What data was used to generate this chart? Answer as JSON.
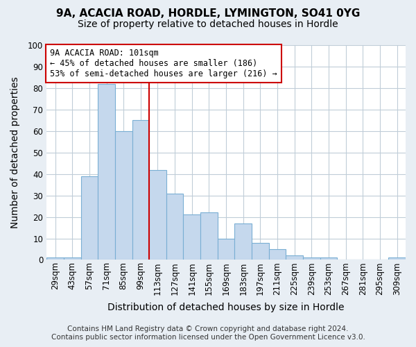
{
  "title": "9A, ACACIA ROAD, HORDLE, LYMINGTON, SO41 0YG",
  "subtitle": "Size of property relative to detached houses in Hordle",
  "xlabel": "Distribution of detached houses by size in Hordle",
  "ylabel": "Number of detached properties",
  "footer_line1": "Contains HM Land Registry data © Crown copyright and database right 2024.",
  "footer_line2": "Contains public sector information licensed under the Open Government Licence v3.0.",
  "bar_labels": [
    "29sqm",
    "43sqm",
    "57sqm",
    "71sqm",
    "85sqm",
    "99sqm",
    "113sqm",
    "127sqm",
    "141sqm",
    "155sqm",
    "169sqm",
    "183sqm",
    "197sqm",
    "211sqm",
    "225sqm",
    "239sqm",
    "253sqm",
    "267sqm",
    "281sqm",
    "295sqm",
    "309sqm"
  ],
  "bar_values": [
    1,
    1,
    39,
    82,
    60,
    65,
    42,
    31,
    21,
    22,
    10,
    17,
    8,
    5,
    2,
    1,
    1,
    0,
    0,
    0,
    1
  ],
  "bar_color": "#c5d8ed",
  "bar_edge_color": "#7aafd4",
  "vline_color": "#cc0000",
  "vline_x_index": 5,
  "annotation_title": "9A ACACIA ROAD: 101sqm",
  "annotation_line1": "← 45% of detached houses are smaller (186)",
  "annotation_line2": "53% of semi-detached houses are larger (216) →",
  "annotation_box_facecolor": "#ffffff",
  "annotation_box_edgecolor": "#cc0000",
  "ylim": [
    0,
    100
  ],
  "yticks": [
    0,
    10,
    20,
    30,
    40,
    50,
    60,
    70,
    80,
    90,
    100
  ],
  "bg_color": "#e8eef4",
  "plot_bg_color": "#ffffff",
  "grid_color": "#c0cdd8",
  "title_fontsize": 11,
  "subtitle_fontsize": 10,
  "axis_label_fontsize": 10,
  "tick_fontsize": 8.5,
  "footer_fontsize": 7.5
}
